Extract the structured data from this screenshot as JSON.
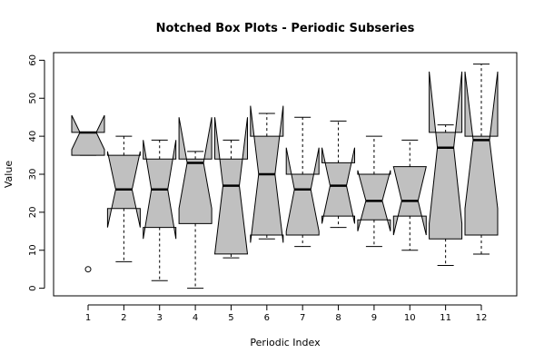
{
  "chart_data": {
    "type": "boxplot",
    "title": "Notched Box Plots - Periodic Subseries",
    "xlabel": "Periodic Index",
    "ylabel": "Value",
    "ylim": [
      -2,
      62
    ],
    "yticks": [
      0,
      10,
      20,
      30,
      40,
      50,
      60
    ],
    "categories": [
      "1",
      "2",
      "3",
      "4",
      "5",
      "6",
      "7",
      "8",
      "9",
      "10",
      "11",
      "12"
    ],
    "fill_color": "#c0c0c0",
    "boxes": [
      {
        "wlo": 35,
        "q1": 35,
        "med": 41,
        "q3": 41,
        "whi": 41,
        "nlo": 36.5,
        "nhi": 45.5,
        "outliers": [
          5
        ]
      },
      {
        "wlo": 7,
        "q1": 21,
        "med": 26,
        "q3": 35,
        "whi": 40,
        "nlo": 16,
        "nhi": 36,
        "outliers": []
      },
      {
        "wlo": 2,
        "q1": 16,
        "med": 26,
        "q3": 34,
        "whi": 39,
        "nlo": 13,
        "nhi": 39,
        "outliers": []
      },
      {
        "wlo": 0,
        "q1": 17,
        "med": 33,
        "q3": 34,
        "whi": 36,
        "nlo": 21,
        "nhi": 45,
        "outliers": []
      },
      {
        "wlo": 8,
        "q1": 9,
        "med": 27,
        "q3": 34,
        "whi": 39,
        "nlo": 9,
        "nhi": 45,
        "outliers": []
      },
      {
        "wlo": 13,
        "q1": 14,
        "med": 30,
        "q3": 40,
        "whi": 46,
        "nlo": 12,
        "nhi": 48,
        "outliers": []
      },
      {
        "wlo": 11,
        "q1": 14,
        "med": 26,
        "q3": 30,
        "whi": 45,
        "nlo": 15,
        "nhi": 37,
        "outliers": []
      },
      {
        "wlo": 16,
        "q1": 19,
        "med": 27,
        "q3": 33,
        "whi": 44,
        "nlo": 17,
        "nhi": 37,
        "outliers": []
      },
      {
        "wlo": 11,
        "q1": 18,
        "med": 23,
        "q3": 30,
        "whi": 40,
        "nlo": 15,
        "nhi": 31,
        "outliers": []
      },
      {
        "wlo": 10,
        "q1": 19,
        "med": 23,
        "q3": 32,
        "whi": 39,
        "nlo": 14,
        "nhi": 32,
        "outliers": []
      },
      {
        "wlo": 6,
        "q1": 13,
        "med": 37,
        "q3": 41,
        "whi": 43,
        "nlo": 17,
        "nhi": 57,
        "outliers": []
      },
      {
        "wlo": 9,
        "q1": 14,
        "med": 39,
        "q3": 40,
        "whi": 59,
        "nlo": 21,
        "nhi": 57,
        "outliers": []
      }
    ]
  }
}
